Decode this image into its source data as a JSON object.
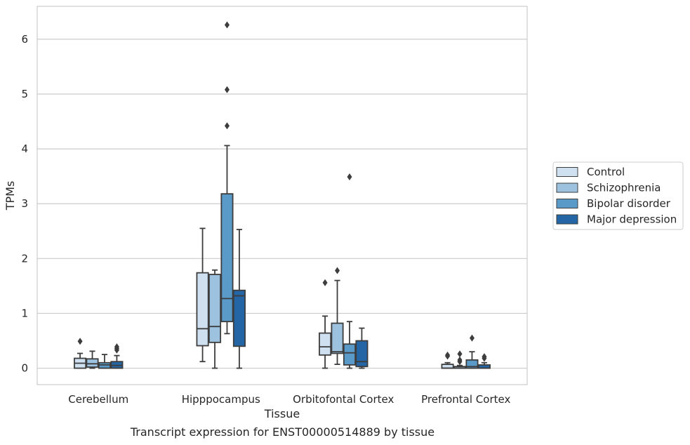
{
  "caption": "Transcript expression for ENST00000514889 by tissue",
  "chart_data": {
    "type": "boxplot",
    "xlabel": "Tissue",
    "ylabel": "TPMs",
    "ylim": [
      -0.3,
      6.6
    ],
    "yticks": [
      0,
      1,
      2,
      3,
      4,
      5,
      6
    ],
    "grid": "horizontal",
    "legend_position": "right",
    "categories": [
      "Cerebellum",
      "Hipppocampus",
      "Orbitofontal Cortex",
      "Prefrontal Cortex"
    ],
    "series": [
      {
        "name": "Control",
        "color": "#cfe0f0",
        "boxes": [
          {
            "whislo": 0.0,
            "q1": 0.0,
            "med": 0.09,
            "q3": 0.18,
            "whishi": 0.27,
            "fliers": [
              0.49
            ]
          },
          {
            "whislo": 0.12,
            "q1": 0.41,
            "med": 0.72,
            "q3": 1.74,
            "whishi": 2.55,
            "fliers": []
          },
          {
            "whislo": 0.0,
            "q1": 0.24,
            "med": 0.39,
            "q3": 0.64,
            "whishi": 0.95,
            "fliers": [
              1.56
            ]
          },
          {
            "whislo": 0.0,
            "q1": 0.0,
            "med": 0.0,
            "q3": 0.07,
            "whishi": 0.1,
            "fliers": [
              0.22,
              0.24
            ]
          }
        ]
      },
      {
        "name": "Schizophrenia",
        "color": "#9cc2df",
        "boxes": [
          {
            "whislo": 0.0,
            "q1": 0.02,
            "med": 0.08,
            "q3": 0.17,
            "whishi": 0.31,
            "fliers": []
          },
          {
            "whislo": 0.0,
            "q1": 0.47,
            "med": 0.76,
            "q3": 1.71,
            "whishi": 1.79,
            "fliers": []
          },
          {
            "whislo": 0.07,
            "q1": 0.27,
            "med": 0.3,
            "q3": 0.82,
            "whishi": 1.6,
            "fliers": [
              1.78
            ]
          },
          {
            "whislo": 0.0,
            "q1": 0.0,
            "med": 0.0,
            "q3": 0.03,
            "whishi": 0.05,
            "fliers": [
              0.12,
              0.15,
              0.26
            ]
          }
        ]
      },
      {
        "name": "Bipolar disorder",
        "color": "#5a9ac9",
        "boxes": [
          {
            "whislo": 0.0,
            "q1": 0.0,
            "med": 0.06,
            "q3": 0.1,
            "whishi": 0.25,
            "fliers": []
          },
          {
            "whislo": 0.63,
            "q1": 0.85,
            "med": 1.27,
            "q3": 3.18,
            "whishi": 4.06,
            "fliers": [
              4.42,
              5.08,
              6.26
            ]
          },
          {
            "whislo": 0.0,
            "q1": 0.06,
            "med": 0.28,
            "q3": 0.44,
            "whishi": 0.85,
            "fliers": [
              3.49
            ]
          },
          {
            "whislo": 0.0,
            "q1": 0.0,
            "med": 0.03,
            "q3": 0.15,
            "whishi": 0.3,
            "fliers": [
              0.55
            ]
          }
        ]
      },
      {
        "name": "Major depression",
        "color": "#2466a5",
        "boxes": [
          {
            "whislo": 0.0,
            "q1": 0.0,
            "med": 0.05,
            "q3": 0.12,
            "whishi": 0.23,
            "fliers": [
              0.33,
              0.36,
              0.39
            ]
          },
          {
            "whislo": 0.0,
            "q1": 0.4,
            "med": 1.32,
            "q3": 1.42,
            "whishi": 2.53,
            "fliers": []
          },
          {
            "whislo": 0.0,
            "q1": 0.03,
            "med": 0.12,
            "q3": 0.5,
            "whishi": 0.73,
            "fliers": []
          },
          {
            "whislo": 0.0,
            "q1": 0.0,
            "med": 0.0,
            "q3": 0.06,
            "whishi": 0.1,
            "fliers": [
              0.18,
              0.21
            ]
          }
        ]
      }
    ]
  }
}
